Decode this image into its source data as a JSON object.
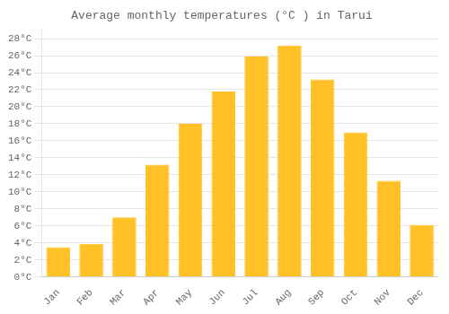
{
  "chart_data": {
    "type": "bar",
    "title": "Average monthly temperatures (°C ) in Tarui",
    "categories": [
      "Jan",
      "Feb",
      "Mar",
      "Apr",
      "May",
      "Jun",
      "Jul",
      "Aug",
      "Sep",
      "Oct",
      "Nov",
      "Dec"
    ],
    "values": [
      3.5,
      3.9,
      7.0,
      13.2,
      18.0,
      21.8,
      25.9,
      27.2,
      23.2,
      17.0,
      11.3,
      6.1
    ],
    "color": "#FFC125",
    "ylim": [
      0,
      29
    ],
    "yticks": [
      {
        "value": 0,
        "label": "0°C"
      },
      {
        "value": 2,
        "label": "2°C"
      },
      {
        "value": 4,
        "label": "4°C"
      },
      {
        "value": 6,
        "label": "6°C"
      },
      {
        "value": 8,
        "label": "8°C"
      },
      {
        "value": 10,
        "label": "10°C"
      },
      {
        "value": 12,
        "label": "12°C"
      },
      {
        "value": 14,
        "label": "14°C"
      },
      {
        "value": 16,
        "label": "16°C"
      },
      {
        "value": 18,
        "label": "18°C"
      },
      {
        "value": 20,
        "label": "20°C"
      },
      {
        "value": 22,
        "label": "22°C"
      },
      {
        "value": 24,
        "label": "24°C"
      },
      {
        "value": 26,
        "label": "26°C"
      },
      {
        "value": 28,
        "label": "28°C"
      }
    ],
    "grid": true
  }
}
